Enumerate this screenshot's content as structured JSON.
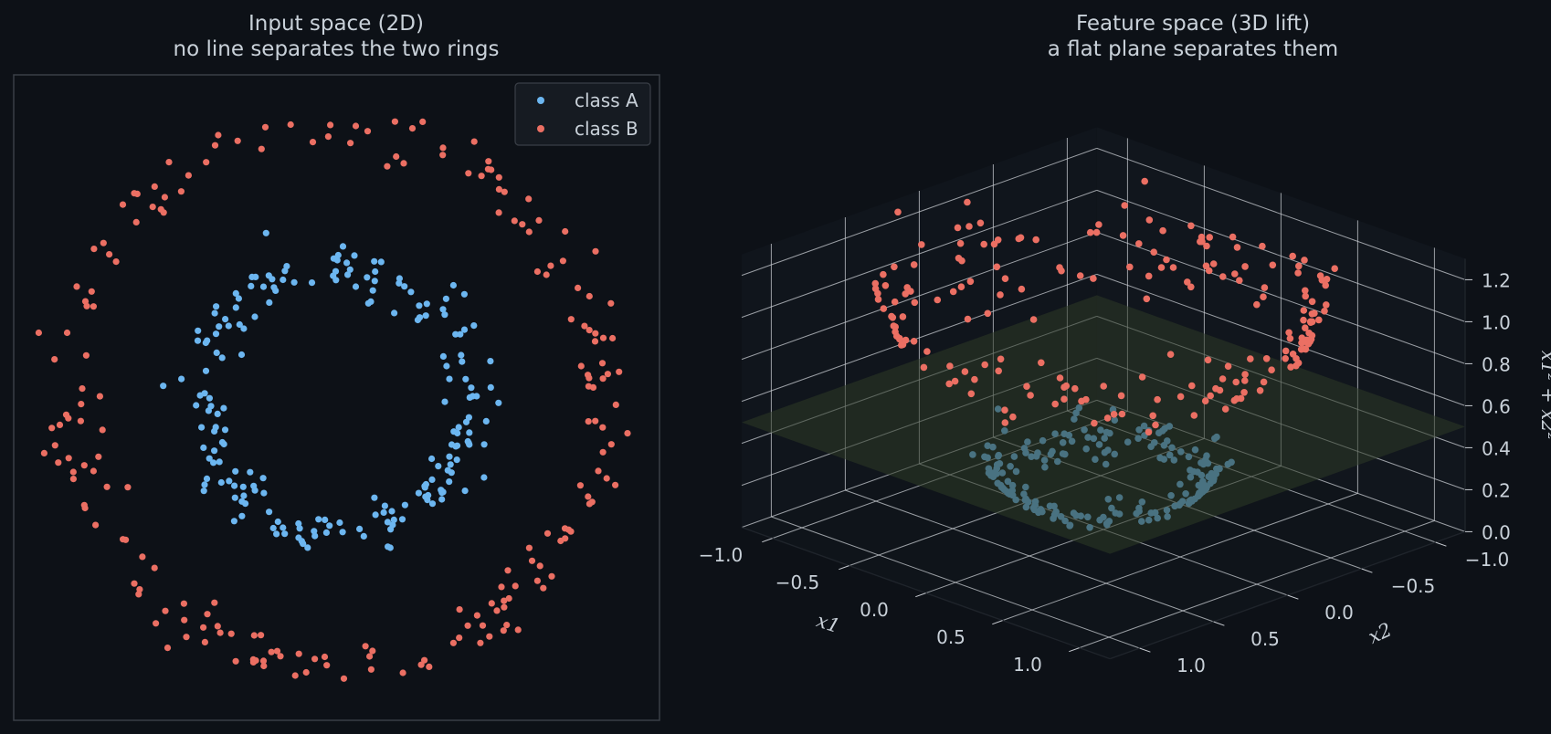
{
  "colors": {
    "background": "#0d1117",
    "text": "#c9d1d9",
    "class_a": "#6cb6f0",
    "class_b": "#eb6f63",
    "frame": "#3a3f47",
    "grid": "#c8ccd2",
    "plane": "#2e3a26"
  },
  "chart_data": [
    {
      "type": "scatter",
      "title": "Input space (2D)",
      "subtitle": "no line separates the two rings",
      "axes_visible": false,
      "legend_position": "top-right",
      "series": [
        {
          "name": "class A",
          "shape": "ring",
          "radius": 0.5,
          "count": 200,
          "noise": 0.05
        },
        {
          "name": "class B",
          "shape": "ring",
          "radius": 1.0,
          "count": 200,
          "noise": 0.05
        }
      ],
      "xlim": [
        -1.2,
        1.2
      ],
      "ylim": [
        -1.2,
        1.2
      ]
    },
    {
      "type": "scatter3d",
      "title": "Feature space (3D lift)",
      "subtitle": "a flat plane separates them",
      "xlabel": "x1",
      "ylabel": "x2",
      "zlabel": "x1² + x2²",
      "lift": "z = x1^2 + x2^2",
      "separating_plane_z": 0.5,
      "xticks": [
        "−1.0",
        "−0.5",
        "0.0",
        "0.5",
        "1.0"
      ],
      "yticks": [
        "−1.0",
        "−0.5",
        "0.0",
        "0.5",
        "1.0"
      ],
      "zticks": [
        "0.0",
        "0.2",
        "0.4",
        "0.6",
        "0.8",
        "1.0",
        "1.2"
      ],
      "xlim": [
        -1.2,
        1.2
      ],
      "ylim": [
        -1.2,
        1.2
      ],
      "zlim": [
        0,
        1.3
      ],
      "series": [
        {
          "name": "class A",
          "source": "inner ring lifted, z ≈ 0.25"
        },
        {
          "name": "class B",
          "source": "outer ring lifted, z ≈ 1.0"
        }
      ]
    }
  ]
}
